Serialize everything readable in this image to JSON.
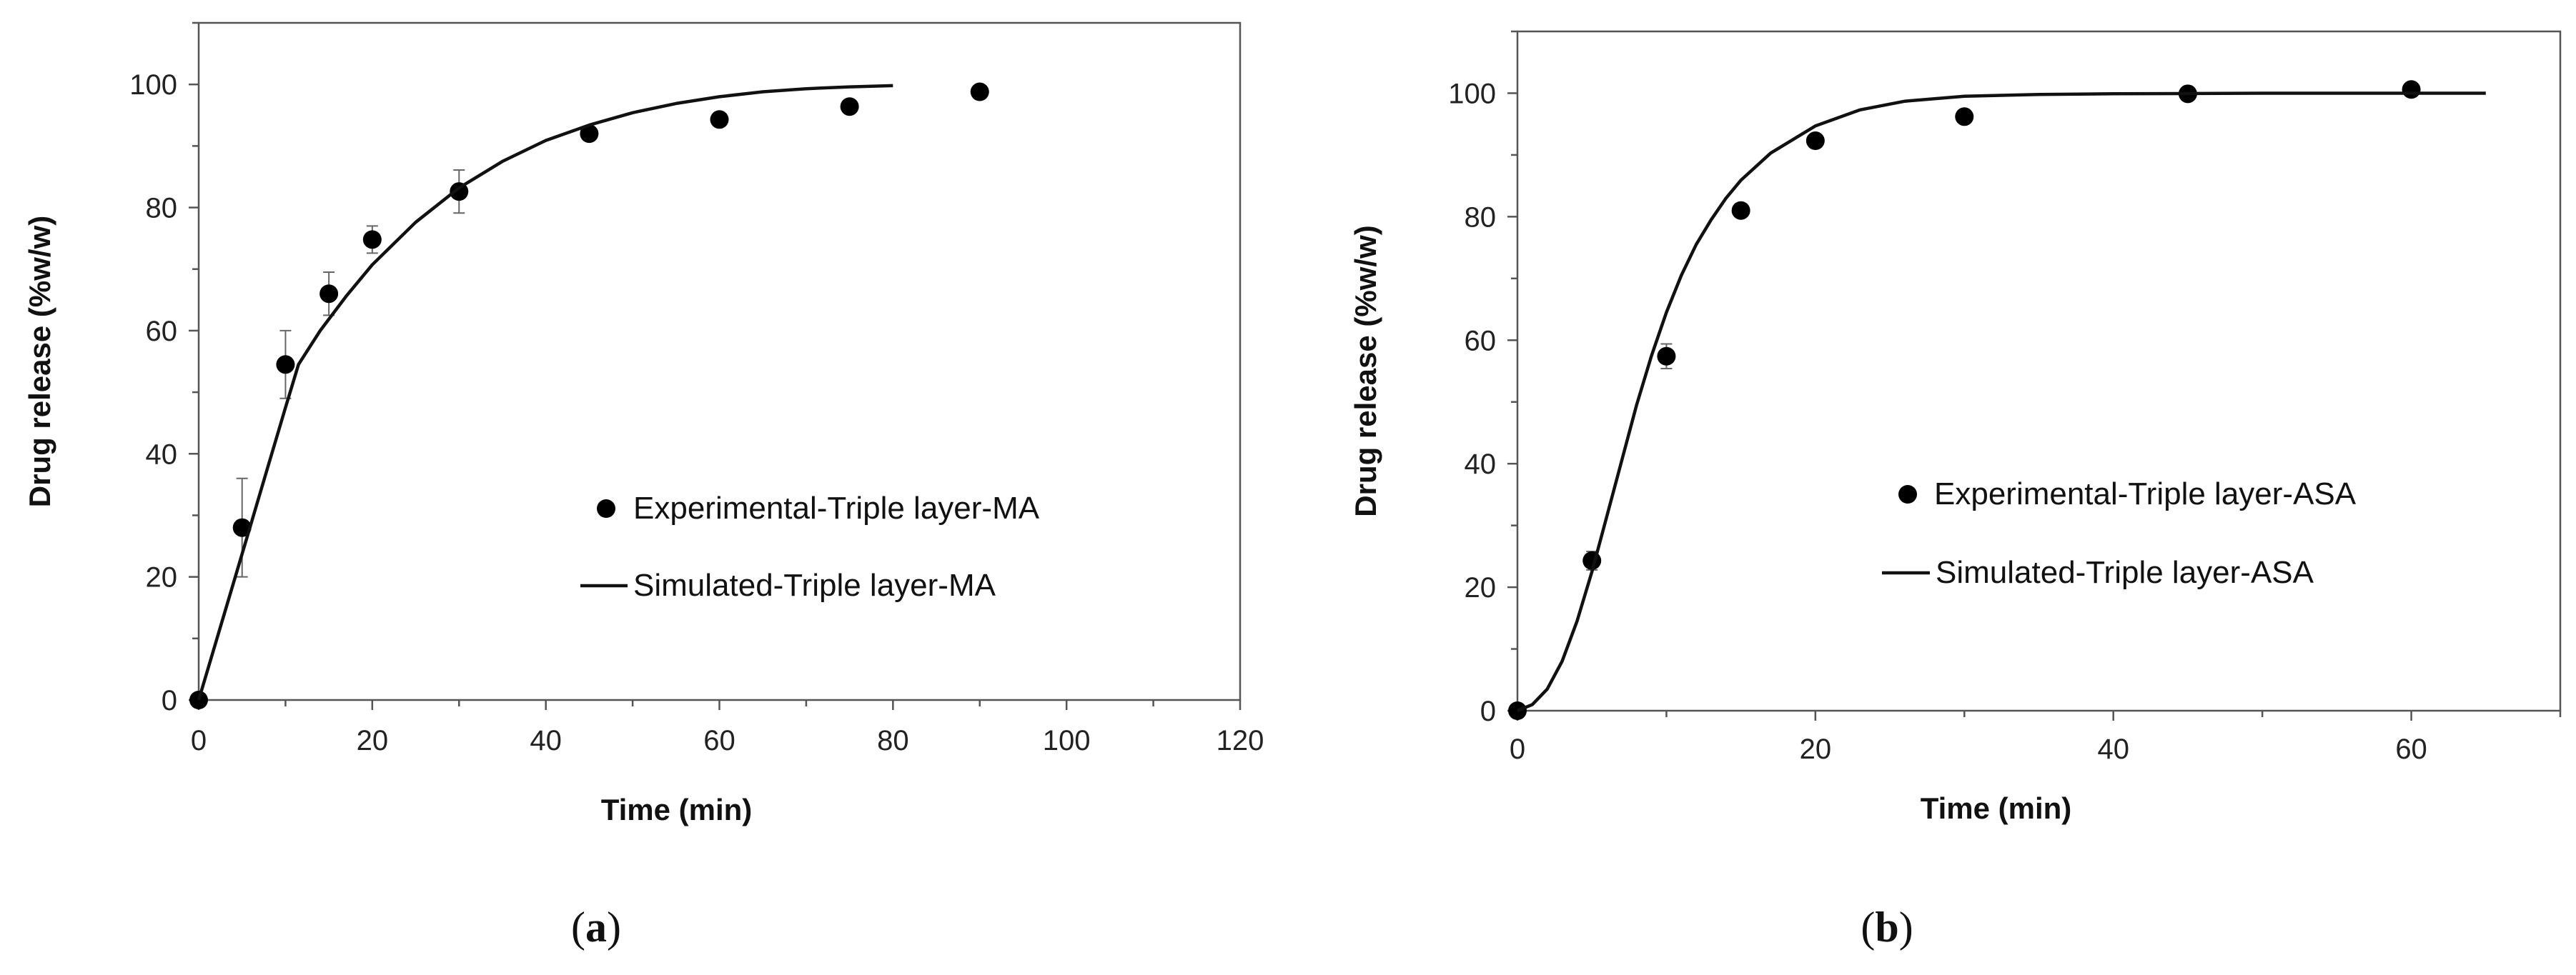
{
  "chart_data": [
    {
      "type": "scatter",
      "panel_label": "a",
      "xlabel": "Time (min)",
      "ylabel": "Drug release  (%w/w)",
      "xlim": [
        0,
        120
      ],
      "ylim": [
        0,
        110
      ],
      "xticks": [
        0,
        20,
        40,
        60,
        80,
        100,
        120
      ],
      "yticks": [
        0,
        20,
        40,
        60,
        80,
        100
      ],
      "grid": false,
      "legend_position": "center-right",
      "series": [
        {
          "name": "Experimental-Triple layer-MA",
          "kind": "points",
          "x": [
            0,
            5,
            10,
            15,
            20,
            30,
            45,
            60,
            75,
            90
          ],
          "y": [
            0,
            28,
            54.5,
            66,
            74.8,
            82.6,
            92,
            94.3,
            96.4,
            98.8
          ],
          "error": [
            0,
            8,
            5.5,
            3.5,
            2.2,
            3.5,
            0,
            0,
            0,
            0
          ]
        },
        {
          "name": "Simulated-Triple layer-MA",
          "kind": "line",
          "x": [
            0,
            2,
            4,
            6,
            8,
            10,
            11.5,
            14,
            17,
            20,
            25,
            30,
            35,
            40,
            45,
            50,
            55,
            60,
            65,
            70,
            75,
            80
          ],
          "y": [
            0,
            9.5,
            19,
            28.5,
            38,
            47.5,
            54.5,
            60,
            65.6,
            70.7,
            77.6,
            83.2,
            87.5,
            90.9,
            93.4,
            95.4,
            96.9,
            98,
            98.8,
            99.3,
            99.6,
            99.8
          ]
        }
      ]
    },
    {
      "type": "scatter",
      "panel_label": "b",
      "xlabel": "Time (min)",
      "ylabel": "Drug release (%w/w)",
      "xlim": [
        0,
        70
      ],
      "ylim": [
        0,
        110
      ],
      "xticks": [
        0,
        20,
        40,
        60
      ],
      "yticks": [
        0,
        20,
        40,
        60,
        80,
        100
      ],
      "grid": false,
      "legend_position": "center-right",
      "series": [
        {
          "name": "Experimental-Triple layer-ASA",
          "kind": "points",
          "x": [
            0,
            5,
            10,
            15,
            20,
            30,
            45,
            60
          ],
          "y": [
            0,
            24.3,
            57.4,
            81,
            92.3,
            96.2,
            99.9,
            100.6
          ],
          "error": [
            0,
            1.5,
            2,
            0,
            0,
            0,
            0,
            0
          ]
        },
        {
          "name": "Simulated-Triple layer-ASA",
          "kind": "line",
          "x": [
            0,
            1,
            2,
            3,
            4,
            5,
            6,
            7,
            8,
            9,
            10,
            11,
            12,
            13,
            14,
            15,
            17,
            20,
            23,
            26,
            30,
            35,
            40,
            50,
            60,
            65
          ],
          "y": [
            0,
            1,
            3.5,
            8,
            14.5,
            22.5,
            31.5,
            40.5,
            49.5,
            57.5,
            64.5,
            70.5,
            75.5,
            79.5,
            83,
            85.9,
            90.3,
            94.7,
            97.3,
            98.7,
            99.5,
            99.8,
            99.9,
            100,
            100,
            100
          ]
        }
      ]
    }
  ]
}
